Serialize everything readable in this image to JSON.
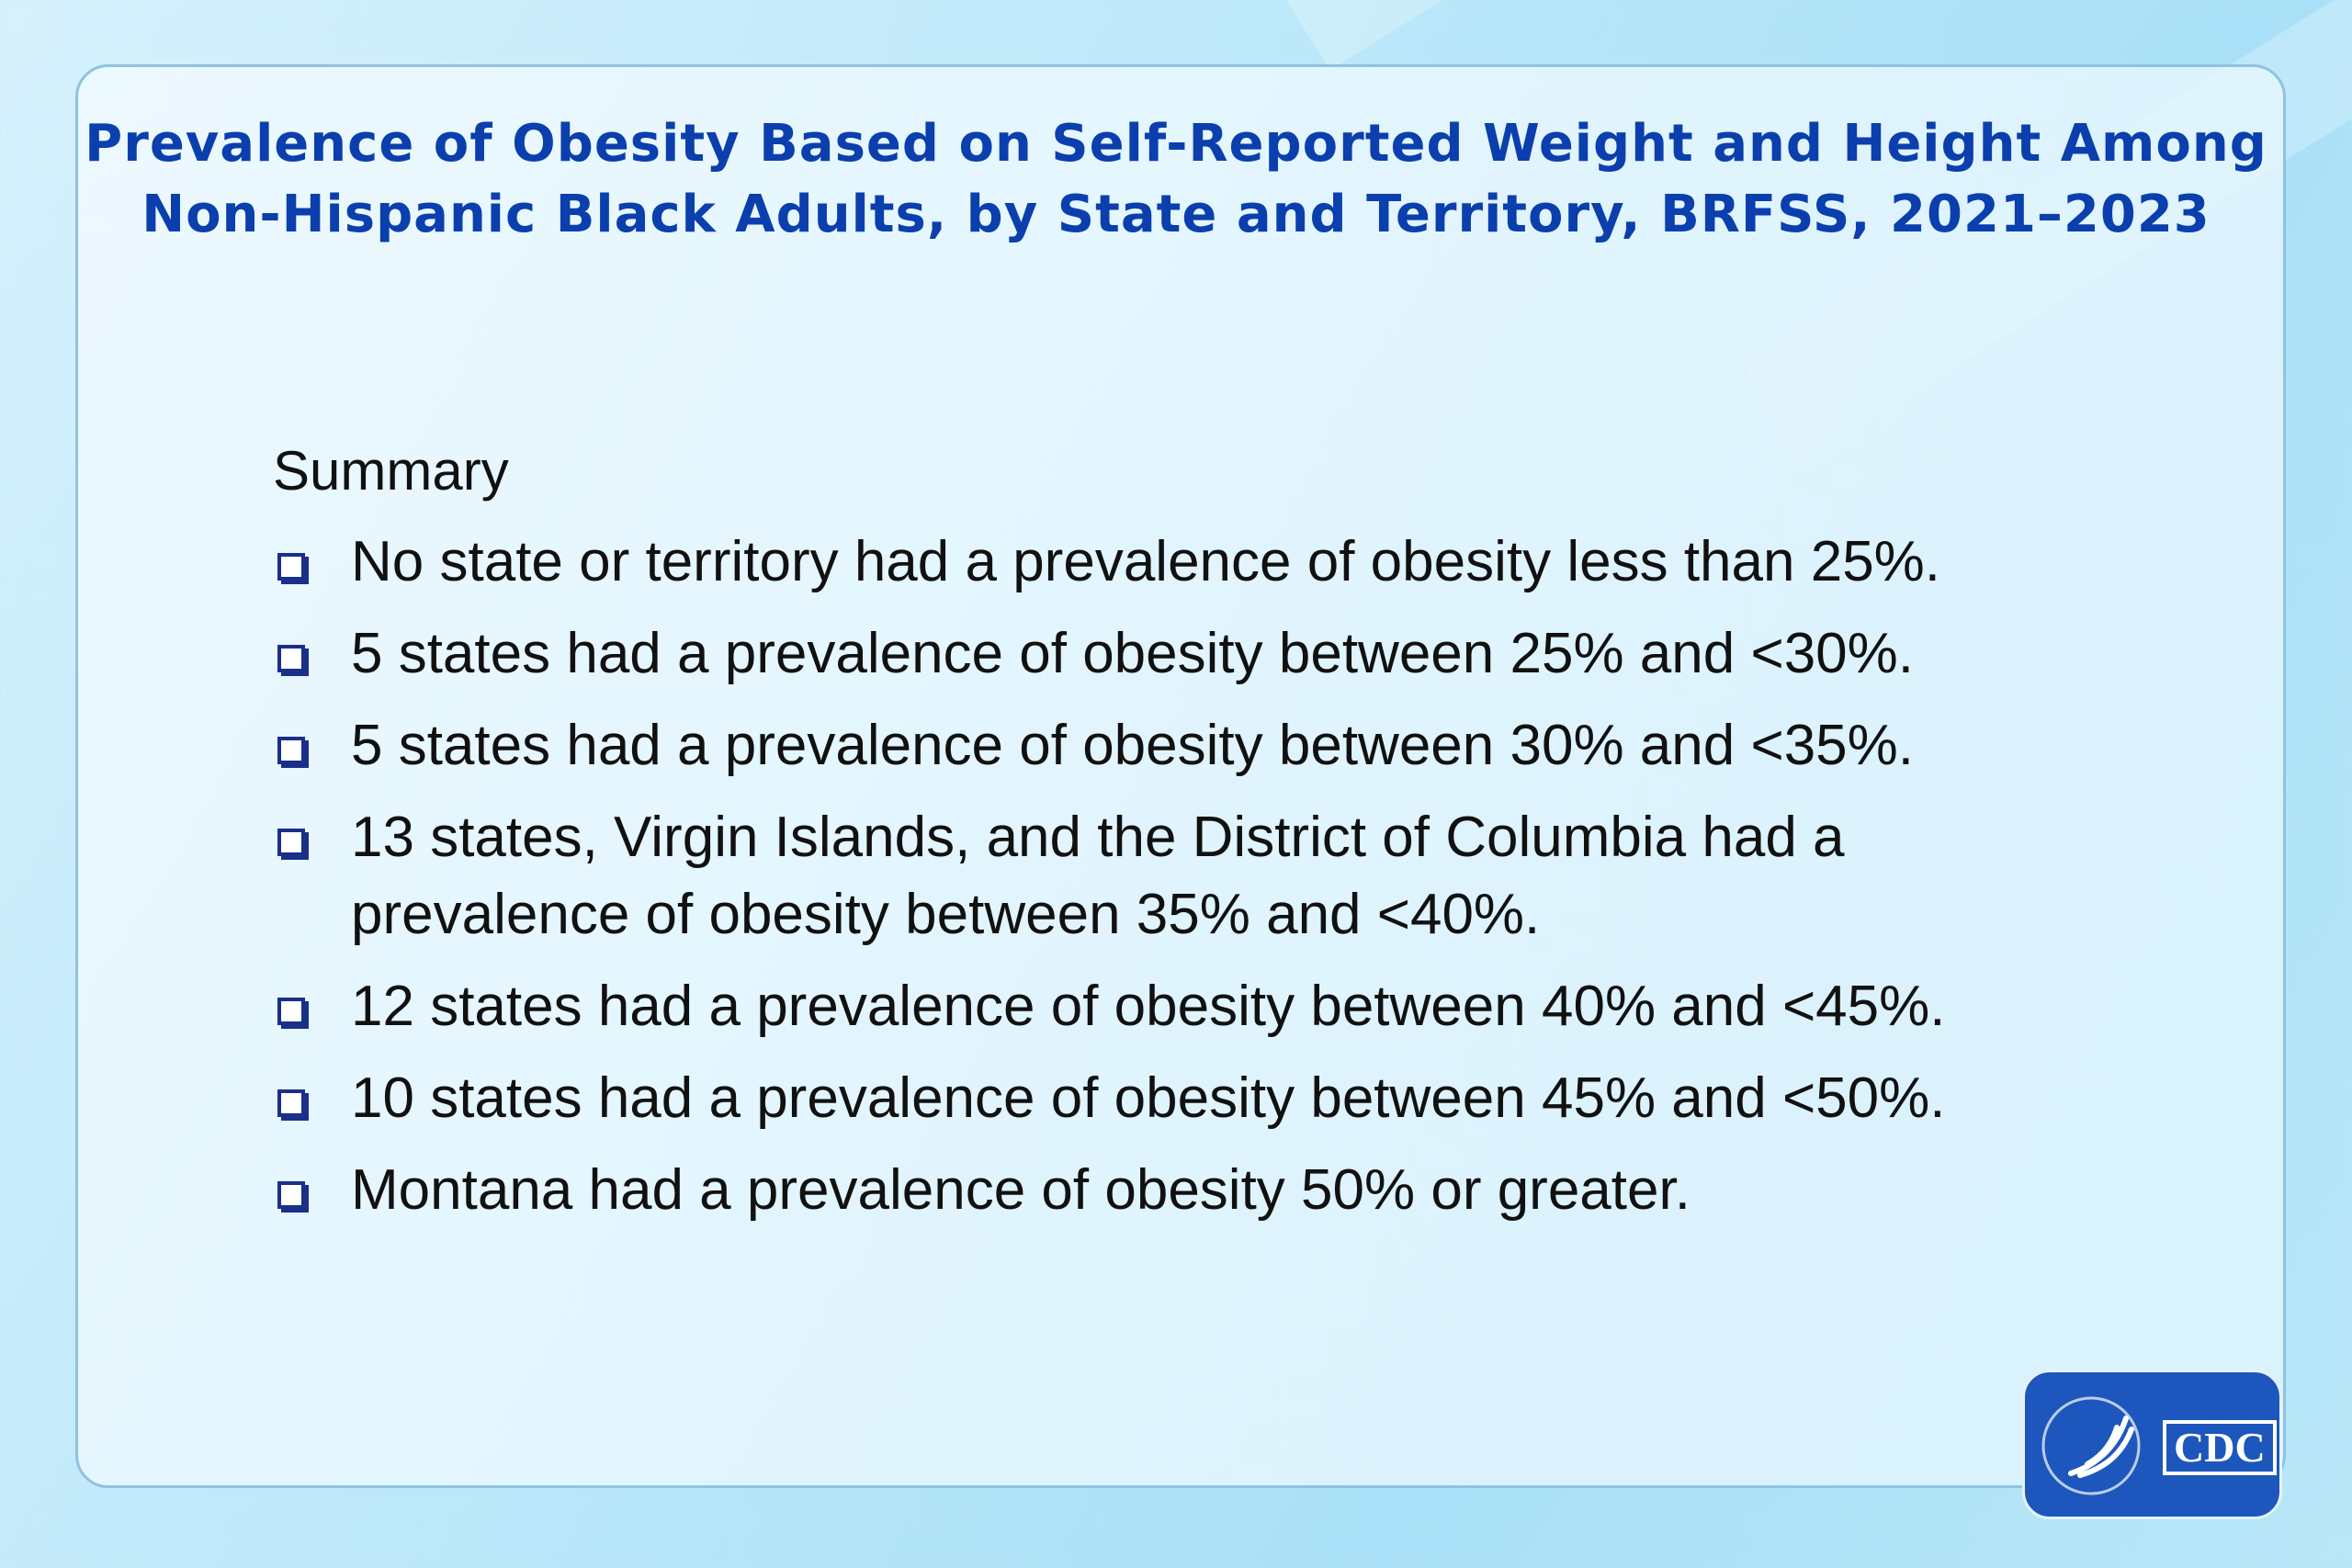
{
  "header": {
    "title_lines": [
      "Prevalence of Obesity Based on Self-Reported Weight and Height Among",
      "Non-Hispanic Black Adults, by State and Territory, BRFSS, 2021–2023"
    ]
  },
  "summary": {
    "heading": "Summary",
    "bullets": [
      "No state or territory had a prevalence of obesity less than 25%.",
      "5 states had a prevalence of obesity between 25% and <30%.",
      "5 states had a prevalence of obesity between 30% and <35%.",
      "13 states, Virgin Islands, and the District of Columbia had a prevalence of obesity between 35% and <40%.",
      "12 states had a prevalence of obesity between 40% and <45%.",
      "10 states had a prevalence of obesity between 45% and <50%.",
      "Montana had a prevalence of obesity 50% or greater."
    ]
  },
  "logo": {
    "text": "CDC"
  }
}
